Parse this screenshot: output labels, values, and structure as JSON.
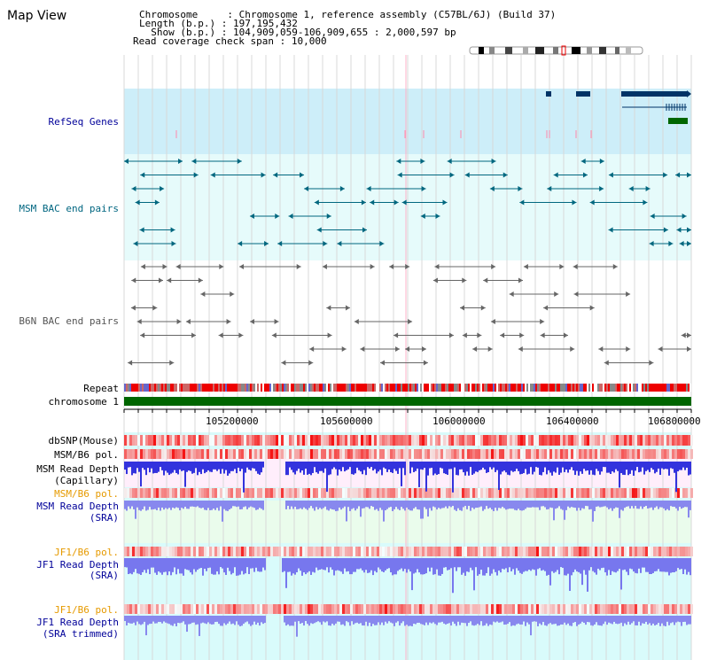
{
  "app": {
    "title": "Map View"
  },
  "info": {
    "chromosome_label": "Chromosome     ",
    "chromosome_value": "Chromosome 1, reference assembly (C57BL/6J) (Build 37)",
    "length_label": "Length (b.p.) ",
    "length_value": "197,195,432",
    "show_label": "  Show (b.p.) ",
    "show_value": "104,909,059-106,909,655 : 2,000,597 bp",
    "span_label": "Read coverage check span",
    "span_value": "10,000"
  },
  "tracks": {
    "refseq": "RefSeq Genes",
    "msm_bac": "MSM BAC end pairs",
    "b6n_bac": "B6N BAC end pairs",
    "repeat": "Repeat",
    "chromosome": "chromosome 1",
    "dbsnp": "dbSNP(Mouse)",
    "msm_b6_pol_1": "MSM/B6 pol.",
    "msm_depth_cap_1": "MSM Read Depth",
    "msm_depth_cap_2": "(Capillary)",
    "msm_b6_pol_2": "MSM/B6 pol.",
    "msm_depth_sra_1": "MSM Read Depth",
    "msm_depth_sra_2": "(SRA)",
    "jf1_pol_1": "JF1/B6 pol.",
    "jf1_depth_sra_1": "JF1 Read Depth",
    "jf1_depth_sra_2": "(SRA)",
    "jf1_pol_2": "JF1/B6 pol.",
    "jf1_trim_1": "JF1 Read Depth",
    "jf1_trim_2": "(SRA trimmed)"
  },
  "axis": {
    "ticks": [
      "105200000",
      "105600000",
      "106000000",
      "106400000",
      "106800000"
    ]
  },
  "colors": {
    "refseq_label": "#000099",
    "msm_label": "#006680",
    "b6n_label": "#555555",
    "pol_orange": "#E69A00",
    "depth_blue": "#000099",
    "chromosome_green": "#006600"
  }
}
